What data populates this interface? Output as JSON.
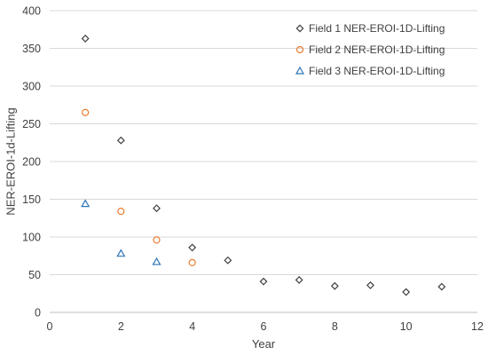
{
  "chart_data": {
    "type": "scatter",
    "title": "",
    "xlabel": "Year",
    "ylabel": "NER-EROI-1d-Lifting",
    "xlim": [
      0,
      12
    ],
    "ylim": [
      0,
      400
    ],
    "xticks": [
      0,
      2,
      4,
      6,
      8,
      10,
      12
    ],
    "yticks": [
      0,
      50,
      100,
      150,
      200,
      250,
      300,
      350,
      400
    ],
    "grid": "horizontal",
    "legend_position": "top-right",
    "series": [
      {
        "name": "Field 1 NER-EROI-1D-Lifting",
        "marker": "diamond",
        "color": "#404040",
        "x": [
          1,
          2,
          3,
          4,
          5,
          6,
          7,
          8,
          9,
          10,
          11
        ],
        "y": [
          363,
          228,
          138,
          86,
          69,
          41,
          43,
          35,
          36,
          27,
          34
        ]
      },
      {
        "name": "Field 2 NER-EROI-1D-Lifting",
        "marker": "circle",
        "color": "#ED7D31",
        "x": [
          1,
          2,
          3,
          4
        ],
        "y": [
          265,
          134,
          96,
          66
        ]
      },
      {
        "name": "Field 3 NER-EROI-1D-Lifting",
        "marker": "triangle",
        "color": "#2E75B6",
        "x": [
          1,
          2,
          3
        ],
        "y": [
          144,
          78,
          67
        ]
      }
    ]
  }
}
